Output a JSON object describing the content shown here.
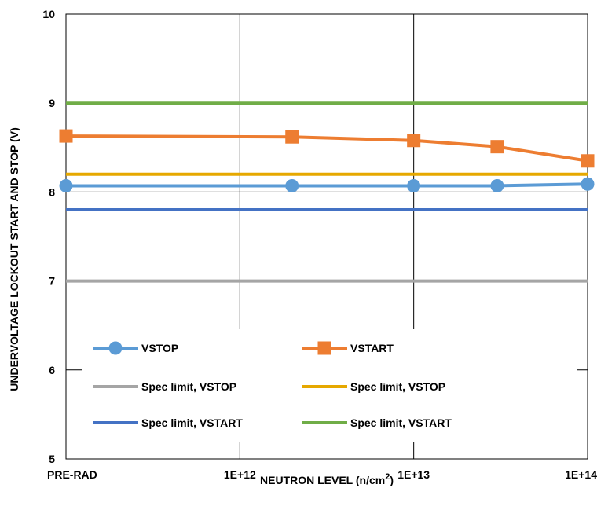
{
  "chart_data": {
    "type": "line",
    "xlabel": "NEUTRON LEVEL (n/cm",
    "xlabel_sup": "2",
    "xlabel_suffix": ")",
    "ylabel": "UNDERVOLTAGE LOCKOUT START AND STOP (V)",
    "x_ticks": [
      "PRE-RAD",
      "1E+12",
      "1E+13",
      "1E+14"
    ],
    "x_tick_positions": [
      0,
      1,
      2,
      3
    ],
    "xlim": [
      0,
      3
    ],
    "y_ticks": [
      "5",
      "6",
      "7",
      "8",
      "9",
      "10"
    ],
    "y_tick_values": [
      5,
      6,
      7,
      8,
      9,
      10
    ],
    "ylim": [
      5,
      10
    ],
    "grid": true,
    "legend_placement": "lower-left",
    "series": [
      {
        "name": "VSTOP",
        "color": "#5B9BD5",
        "marker": "circle",
        "x": [
          0,
          1.3,
          2,
          2.48,
          3
        ],
        "y": [
          8.07,
          8.07,
          8.07,
          8.07,
          8.09
        ]
      },
      {
        "name": "VSTART",
        "color": "#ED7D31",
        "marker": "square",
        "x": [
          0,
          1.3,
          2,
          2.48,
          3
        ],
        "y": [
          8.63,
          8.62,
          8.58,
          8.51,
          8.35
        ]
      },
      {
        "name": "Spec limit, VSTOP",
        "color": "#A5A5A5",
        "marker": "none",
        "x": [
          0,
          3
        ],
        "y": [
          7.0,
          7.0
        ]
      },
      {
        "name": "Spec limit, VSTOP",
        "color": "#E6A800",
        "marker": "none",
        "x": [
          0,
          3
        ],
        "y": [
          8.2,
          8.2
        ]
      },
      {
        "name": "Spec limit, VSTART",
        "color": "#4472C4",
        "marker": "none",
        "x": [
          0,
          3
        ],
        "y": [
          7.8,
          7.8
        ]
      },
      {
        "name": "Spec limit, VSTART",
        "color": "#70AD47",
        "marker": "none",
        "x": [
          0,
          3
        ],
        "y": [
          9.0,
          9.0
        ]
      }
    ]
  }
}
